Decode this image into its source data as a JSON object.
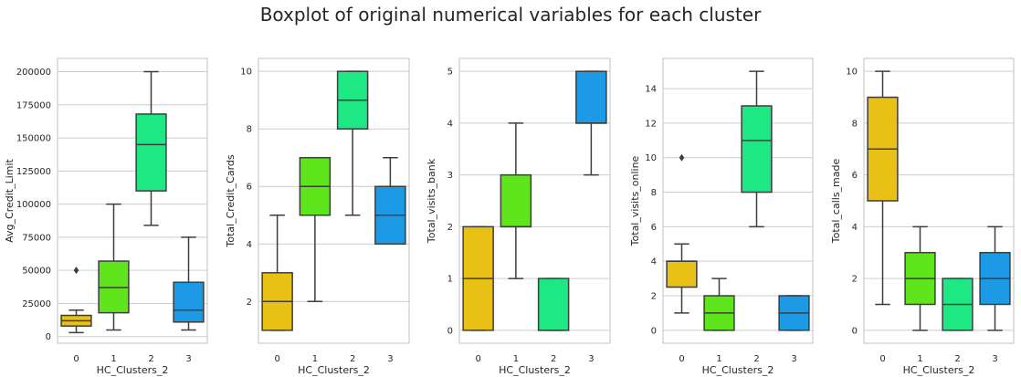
{
  "suptitle": "Boxplot of original numerical variables for each cluster",
  "colors": {
    "cluster_0": "#e8c016",
    "cluster_1": "#5ee51b",
    "cluster_2": "#1ee884",
    "cluster_3": "#1d9ae6",
    "line": "#3d3d3d",
    "grid": "#cccccc",
    "frame": "#cccccc",
    "text": "#262626"
  },
  "chart_data": [
    {
      "type": "boxplot",
      "xlabel": "HC_Clusters_2",
      "ylabel": "Avg_Credit_Limit",
      "categories": [
        "0",
        "1",
        "2",
        "3"
      ],
      "ylim": [
        -5000,
        210000
      ],
      "yticks": [
        0,
        25000,
        50000,
        75000,
        100000,
        125000,
        150000,
        175000,
        200000
      ],
      "grid": true,
      "boxes": [
        {
          "whislo": 3000,
          "q1": 8000,
          "med": 12000,
          "q3": 16000,
          "whishi": 20000,
          "fliers": [
            50000
          ]
        },
        {
          "whislo": 5000,
          "q1": 18000,
          "med": 37000,
          "q3": 57000,
          "whishi": 100000,
          "fliers": []
        },
        {
          "whislo": 84000,
          "q1": 110000,
          "med": 145000,
          "q3": 168000,
          "whishi": 200000,
          "fliers": []
        },
        {
          "whislo": 5000,
          "q1": 11000,
          "med": 20000,
          "q3": 41000,
          "whishi": 75000,
          "fliers": []
        }
      ]
    },
    {
      "type": "boxplot",
      "xlabel": "HC_Clusters_2",
      "ylabel": "Total_Credit_Cards",
      "categories": [
        "0",
        "1",
        "2",
        "3"
      ],
      "ylim": [
        0.55,
        10.45
      ],
      "yticks": [
        2,
        4,
        6,
        8,
        10
      ],
      "grid": true,
      "boxes": [
        {
          "whislo": 1,
          "q1": 1,
          "med": 2,
          "q3": 3,
          "whishi": 5,
          "fliers": []
        },
        {
          "whislo": 2,
          "q1": 5,
          "med": 6,
          "q3": 7,
          "whishi": 7,
          "fliers": []
        },
        {
          "whislo": 5,
          "q1": 8,
          "med": 9,
          "q3": 10,
          "whishi": 10,
          "fliers": []
        },
        {
          "whislo": 4,
          "q1": 4,
          "med": 5,
          "q3": 6,
          "whishi": 7,
          "fliers": []
        }
      ]
    },
    {
      "type": "boxplot",
      "xlabel": "HC_Clusters_2",
      "ylabel": "Total_visits_bank",
      "categories": [
        "0",
        "1",
        "2",
        "3"
      ],
      "ylim": [
        -0.25,
        5.25
      ],
      "yticks": [
        0,
        1,
        2,
        3,
        4,
        5
      ],
      "grid": true,
      "boxes": [
        {
          "whislo": 0,
          "q1": 0,
          "med": 1,
          "q3": 2,
          "whishi": 2,
          "fliers": []
        },
        {
          "whislo": 1,
          "q1": 2,
          "med": 2,
          "q3": 3,
          "whishi": 4,
          "fliers": []
        },
        {
          "whislo": 0,
          "q1": 0,
          "med": 0,
          "q3": 1,
          "whishi": 1,
          "fliers": []
        },
        {
          "whislo": 3,
          "q1": 4,
          "med": 4,
          "q3": 5,
          "whishi": 5,
          "fliers": []
        }
      ]
    },
    {
      "type": "boxplot",
      "xlabel": "HC_Clusters_2",
      "ylabel": "Total_visits_online",
      "categories": [
        "0",
        "1",
        "2",
        "3"
      ],
      "ylim": [
        -0.75,
        15.75
      ],
      "yticks": [
        0,
        2,
        4,
        6,
        8,
        10,
        12,
        14
      ],
      "grid": true,
      "boxes": [
        {
          "whislo": 1,
          "q1": 2.5,
          "med": 4,
          "q3": 4,
          "whishi": 5,
          "fliers": [
            10
          ]
        },
        {
          "whislo": 0,
          "q1": 0,
          "med": 1,
          "q3": 2,
          "whishi": 3,
          "fliers": []
        },
        {
          "whislo": 6,
          "q1": 8,
          "med": 11,
          "q3": 13,
          "whishi": 15,
          "fliers": []
        },
        {
          "whislo": 0,
          "q1": 0,
          "med": 1,
          "q3": 2,
          "whishi": 2,
          "fliers": []
        }
      ]
    },
    {
      "type": "boxplot",
      "xlabel": "HC_Clusters_2",
      "ylabel": "Total_calls_made",
      "categories": [
        "0",
        "1",
        "2",
        "3"
      ],
      "ylim": [
        -0.5,
        10.5
      ],
      "yticks": [
        0,
        2,
        4,
        6,
        8,
        10
      ],
      "grid": true,
      "boxes": [
        {
          "whislo": 1,
          "q1": 5,
          "med": 7,
          "q3": 9,
          "whishi": 10,
          "fliers": []
        },
        {
          "whislo": 0,
          "q1": 1,
          "med": 2,
          "q3": 3,
          "whishi": 4,
          "fliers": []
        },
        {
          "whislo": 0,
          "q1": 0,
          "med": 1,
          "q3": 2,
          "whishi": 2,
          "fliers": []
        },
        {
          "whislo": 0,
          "q1": 1,
          "med": 2,
          "q3": 3,
          "whishi": 4,
          "fliers": []
        }
      ]
    }
  ]
}
